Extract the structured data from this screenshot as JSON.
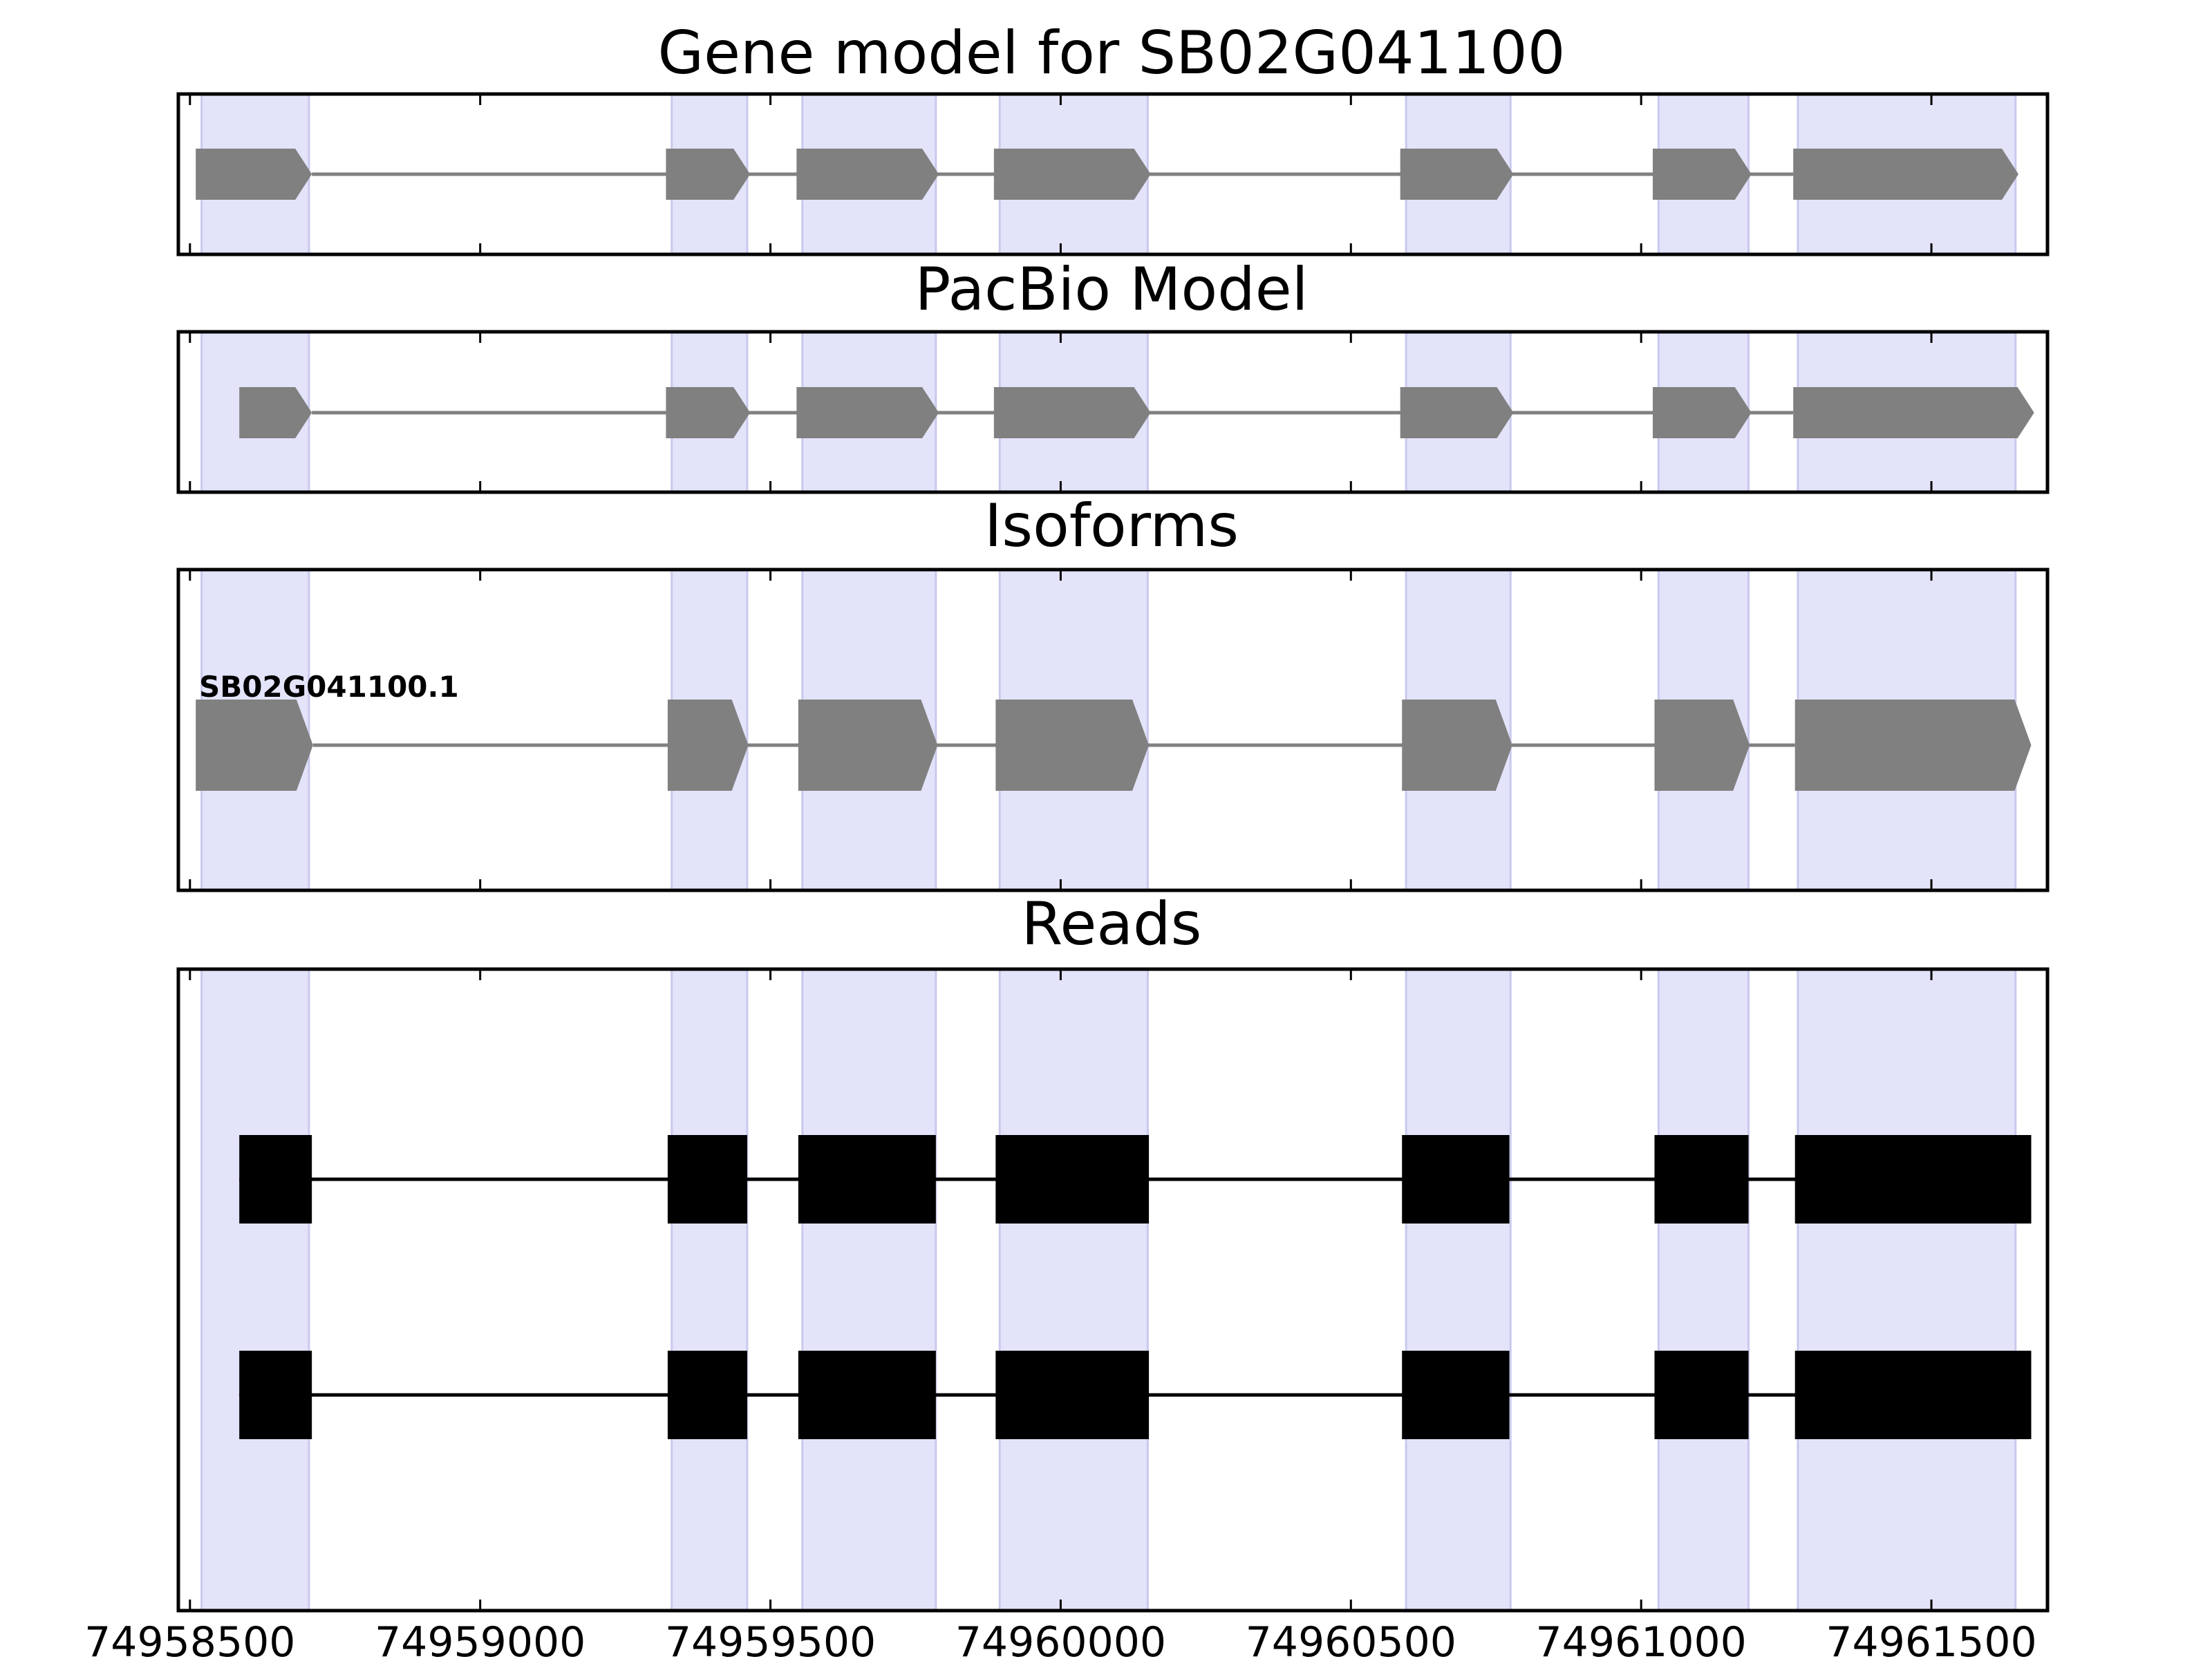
{
  "chart_data": {
    "type": "gene-structure",
    "xlim": [
      74958480,
      74961700
    ],
    "xticks": [
      74958500,
      74959000,
      74959500,
      74960000,
      74960500,
      74961000,
      74961500
    ],
    "xtick_labels": [
      "74958500",
      "74959000",
      "74959500",
      "74960000",
      "74960500",
      "74961000",
      "74961500"
    ],
    "colors": {
      "highlight": "#e3e3fa",
      "highlight_edge": "#c9c9ee",
      "gene_feature": "#808080",
      "intron_line": "#808080",
      "read_feature": "#000000",
      "read_line": "#000000",
      "frame": "#000000"
    },
    "highlight_regions": [
      [
        74958520,
        74958705
      ],
      [
        74959330,
        74959460
      ],
      [
        74959555,
        74959785
      ],
      [
        74959895,
        74960150
      ],
      [
        74960595,
        74960775
      ],
      [
        74961030,
        74961185
      ],
      [
        74961270,
        74961645
      ]
    ],
    "panels": [
      {
        "title": "Gene model for SB02G041100",
        "strand": "+",
        "exons": [
          [
            74958510,
            74958710
          ],
          [
            74959320,
            74959465
          ],
          [
            74959545,
            74959790
          ],
          [
            74959885,
            74960155
          ],
          [
            74960585,
            74960780
          ],
          [
            74961020,
            74961190
          ],
          [
            74961262,
            74961650
          ]
        ]
      },
      {
        "title": "PacBio Model",
        "strand": "+",
        "exons": [
          [
            74958585,
            74958710
          ],
          [
            74959320,
            74959465
          ],
          [
            74959545,
            74959790
          ],
          [
            74959885,
            74960155
          ],
          [
            74960585,
            74960780
          ],
          [
            74961020,
            74961190
          ],
          [
            74961262,
            74961677
          ]
        ]
      },
      {
        "title": "Isoforms",
        "isoforms": [
          {
            "name": "SB02G041100.1",
            "strand": "+",
            "exons": [
              [
                74958510,
                74958712
              ],
              [
                74959323,
                74959462
              ],
              [
                74959548,
                74959788
              ],
              [
                74959888,
                74960152
              ],
              [
                74960588,
                74960778
              ],
              [
                74961023,
                74961187
              ],
              [
                74961265,
                74961672
              ]
            ]
          }
        ]
      },
      {
        "title": "Reads",
        "reads": [
          {
            "exons": [
              [
                74958585,
                74958710
              ],
              [
                74959323,
                74959460
              ],
              [
                74959548,
                74959785
              ],
              [
                74959888,
                74960152
              ],
              [
                74960588,
                74960773
              ],
              [
                74961023,
                74961185
              ],
              [
                74961265,
                74961672
              ]
            ]
          },
          {
            "exons": [
              [
                74958585,
                74958710
              ],
              [
                74959323,
                74959460
              ],
              [
                74959548,
                74959785
              ],
              [
                74959888,
                74960152
              ],
              [
                74960588,
                74960773
              ],
              [
                74961023,
                74961185
              ],
              [
                74961265,
                74961672
              ]
            ]
          }
        ]
      }
    ]
  }
}
